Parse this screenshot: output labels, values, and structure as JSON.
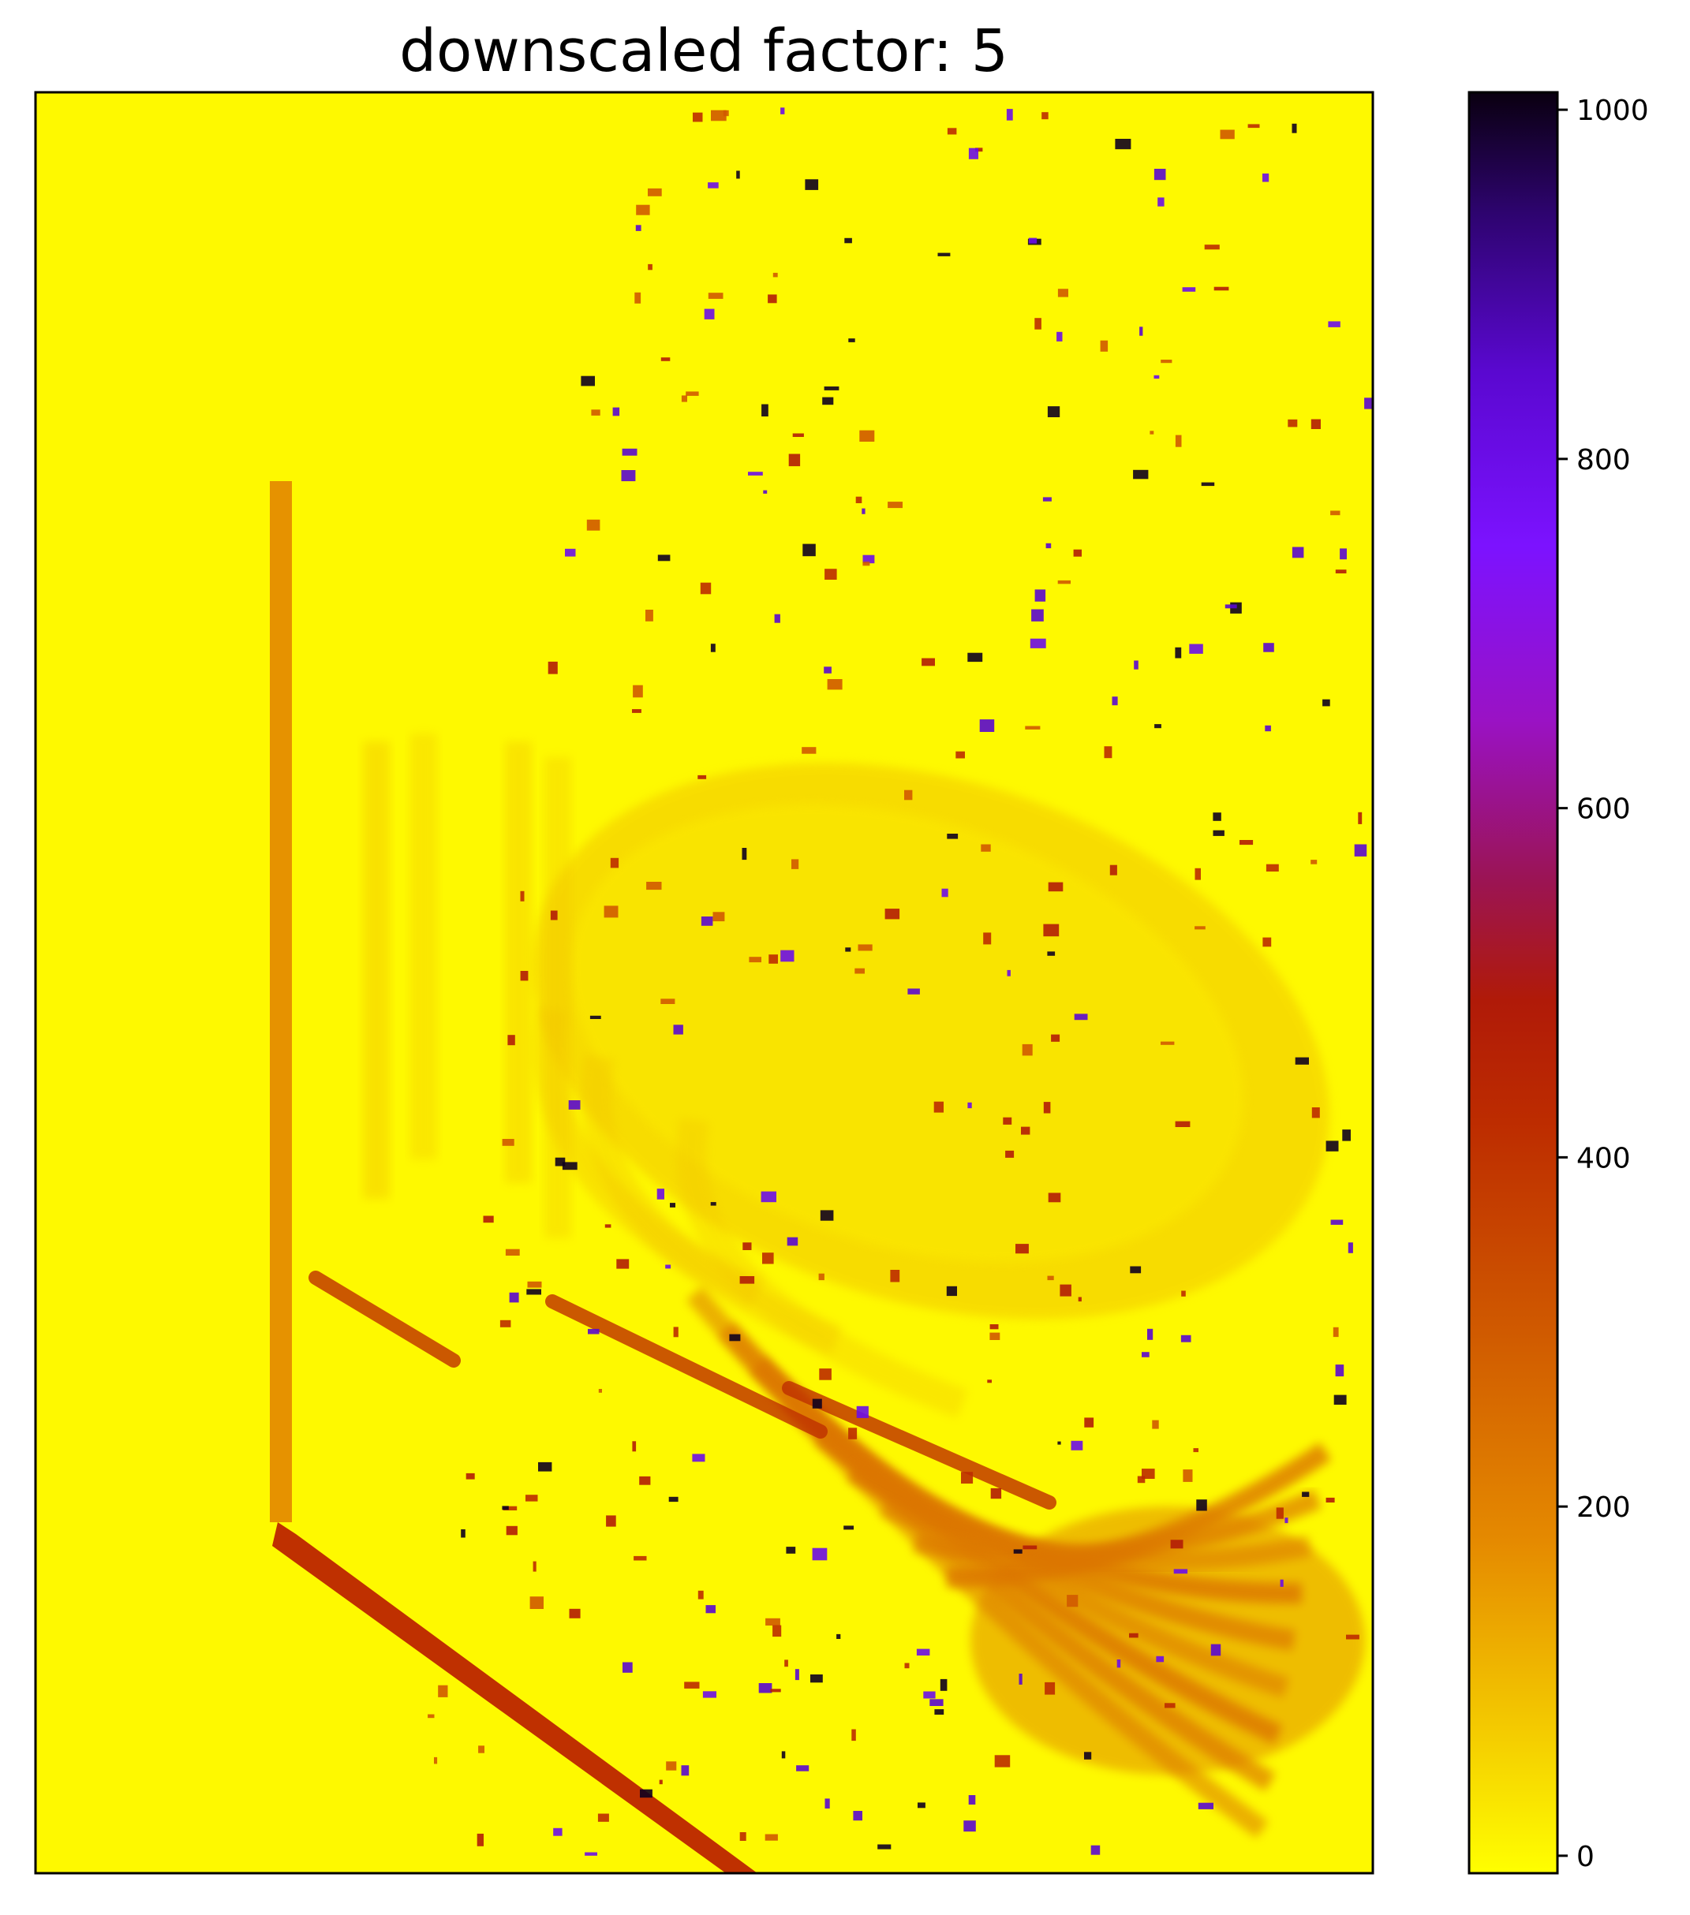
{
  "chart_data": {
    "type": "heatmap",
    "title": "downscaled factor: 5",
    "colormap": "gnuplot2_r",
    "colorbar": {
      "vmin": -10,
      "vmax": 1010,
      "ticks": [
        0,
        200,
        400,
        600,
        800,
        1000
      ],
      "tick_labels": [
        "0",
        "200",
        "400",
        "600",
        "800",
        "1000"
      ],
      "stops": [
        {
          "value": -10,
          "color": "#ffff00"
        },
        {
          "value": 70,
          "color": "#f4cc00"
        },
        {
          "value": 180,
          "color": "#e58a00"
        },
        {
          "value": 300,
          "color": "#d05a00"
        },
        {
          "value": 420,
          "color": "#bd2c00"
        },
        {
          "value": 490,
          "color": "#b01a08"
        },
        {
          "value": 560,
          "color": "#9b1455"
        },
        {
          "value": 650,
          "color": "#9a12c4"
        },
        {
          "value": 750,
          "color": "#7c12ff"
        },
        {
          "value": 850,
          "color": "#5a08d0"
        },
        {
          "value": 940,
          "color": "#2e0470"
        },
        {
          "value": 1010,
          "color": "#0a0010"
        }
      ]
    },
    "axes": {
      "x_ticks": false,
      "y_ticks": false
    },
    "regions": [
      {
        "name": "background",
        "value": 0
      },
      {
        "name": "vertical-edge-strip",
        "value": 190
      },
      {
        "name": "diagonal-edge-band",
        "value": 410
      },
      {
        "name": "ellipse-inner",
        "value": 30
      },
      {
        "name": "ellipse-ring",
        "value": 80
      },
      {
        "name": "lower-right-fan",
        "value": 230
      }
    ]
  }
}
